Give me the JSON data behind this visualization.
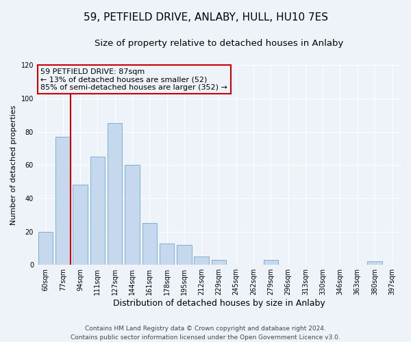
{
  "title": "59, PETFIELD DRIVE, ANLABY, HULL, HU10 7ES",
  "subtitle": "Size of property relative to detached houses in Anlaby",
  "xlabel": "Distribution of detached houses by size in Anlaby",
  "ylabel": "Number of detached properties",
  "bar_labels": [
    "60sqm",
    "77sqm",
    "94sqm",
    "111sqm",
    "127sqm",
    "144sqm",
    "161sqm",
    "178sqm",
    "195sqm",
    "212sqm",
    "229sqm",
    "245sqm",
    "262sqm",
    "279sqm",
    "296sqm",
    "313sqm",
    "330sqm",
    "346sqm",
    "363sqm",
    "380sqm",
    "397sqm"
  ],
  "bar_heights": [
    20,
    77,
    48,
    65,
    85,
    60,
    25,
    13,
    12,
    5,
    3,
    0,
    0,
    3,
    0,
    0,
    0,
    0,
    0,
    2,
    0
  ],
  "bar_color": "#c5d8ed",
  "bar_edge_color": "#7aafd4",
  "ref_line_x": 1.43,
  "annotation_line1": "59 PETFIELD DRIVE: 87sqm",
  "annotation_line2": "← 13% of detached houses are smaller (52)",
  "annotation_line3": "85% of semi-detached houses are larger (352) →",
  "ylim": [
    0,
    120
  ],
  "yticks": [
    0,
    20,
    40,
    60,
    80,
    100,
    120
  ],
  "footer_line1": "Contains HM Land Registry data © Crown copyright and database right 2024.",
  "footer_line2": "Contains public sector information licensed under the Open Government Licence v3.0.",
  "background_color": "#eef2f9",
  "plot_bg_color": "#eef2f9",
  "grid_color": "#ffffff",
  "annotation_box_edge": "#cc0000",
  "ref_line_color": "#cc0000",
  "title_fontsize": 11,
  "subtitle_fontsize": 9.5,
  "xlabel_fontsize": 9,
  "ylabel_fontsize": 8,
  "tick_fontsize": 7,
  "annotation_fontsize": 8,
  "footer_fontsize": 6.5
}
